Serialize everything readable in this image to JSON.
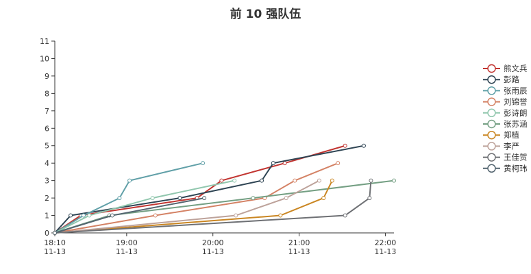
{
  "chart_data": {
    "type": "line",
    "title": "前 10 强队伍",
    "xlabel": "",
    "ylabel": "",
    "x_type": "time",
    "xlim": [
      "2023-11-13 18:10",
      "2023-11-13 22:06"
    ],
    "ylim": [
      0,
      11
    ],
    "y_ticks": [
      0,
      1,
      2,
      3,
      4,
      5,
      6,
      7,
      8,
      9,
      10,
      11
    ],
    "x_ticks": [
      {
        "time": "18:10",
        "label": "18:10",
        "sub": "11-13"
      },
      {
        "time": "19:00",
        "label": "19:00",
        "sub": "11-13"
      },
      {
        "time": "20:00",
        "label": "20:00",
        "sub": "11-13"
      },
      {
        "time": "21:00",
        "label": "21:00",
        "sub": "11-13"
      },
      {
        "time": "22:00",
        "label": "22:00",
        "sub": "11-13"
      }
    ],
    "grid": false,
    "legend_position": "right",
    "series": [
      {
        "name": "熊文兵",
        "color": "#c23531",
        "points": [
          [
            "18:10",
            0
          ],
          [
            "18:28",
            1
          ],
          [
            "19:49",
            2
          ],
          [
            "20:06",
            3
          ],
          [
            "20:50",
            4
          ],
          [
            "21:32",
            5
          ]
        ]
      },
      {
        "name": "彭路",
        "color": "#2f4554",
        "points": [
          [
            "18:10",
            0
          ],
          [
            "18:21",
            1
          ],
          [
            "19:37",
            2
          ],
          [
            "20:34",
            3
          ],
          [
            "20:42",
            4
          ],
          [
            "21:45",
            5
          ]
        ]
      },
      {
        "name": "张雨辰",
        "color": "#61a0a8",
        "points": [
          [
            "18:10",
            0
          ],
          [
            "18:30",
            1
          ],
          [
            "18:55",
            2
          ],
          [
            "19:02",
            3
          ],
          [
            "19:53",
            4
          ]
        ]
      },
      {
        "name": "刘锦誉",
        "color": "#d48265",
        "points": [
          [
            "18:10",
            0
          ],
          [
            "19:20",
            1
          ],
          [
            "20:36",
            2
          ],
          [
            "20:57",
            3
          ],
          [
            "21:27",
            4
          ]
        ]
      },
      {
        "name": "彭诗朗",
        "color": "#91c7ae",
        "points": [
          [
            "18:10",
            0
          ],
          [
            "18:34",
            1
          ],
          [
            "19:18",
            2
          ],
          [
            "20:15",
            3
          ]
        ]
      },
      {
        "name": "张苏涵",
        "color": "#749f83",
        "points": [
          [
            "18:10",
            0
          ],
          [
            "18:48",
            1
          ],
          [
            "20:28",
            2
          ],
          [
            "22:06",
            3
          ]
        ]
      },
      {
        "name": "郑植",
        "color": "#ca8622",
        "points": [
          [
            "18:10",
            0
          ],
          [
            "20:47",
            1
          ],
          [
            "21:17",
            2
          ],
          [
            "21:23",
            3
          ]
        ]
      },
      {
        "name": "李严",
        "color": "#bda29a",
        "points": [
          [
            "18:10",
            0
          ],
          [
            "20:16",
            1
          ],
          [
            "20:51",
            2
          ],
          [
            "21:14",
            3
          ]
        ]
      },
      {
        "name": "王佳贺",
        "color": "#6e7074",
        "points": [
          [
            "18:10",
            0
          ],
          [
            "21:32",
            1
          ],
          [
            "21:49",
            2
          ],
          [
            "21:50",
            3
          ]
        ]
      },
      {
        "name": "黄柯玮",
        "color": "#546570",
        "points": [
          [
            "18:10",
            0
          ],
          [
            "18:50",
            1
          ],
          [
            "19:54",
            2
          ]
        ]
      }
    ]
  }
}
